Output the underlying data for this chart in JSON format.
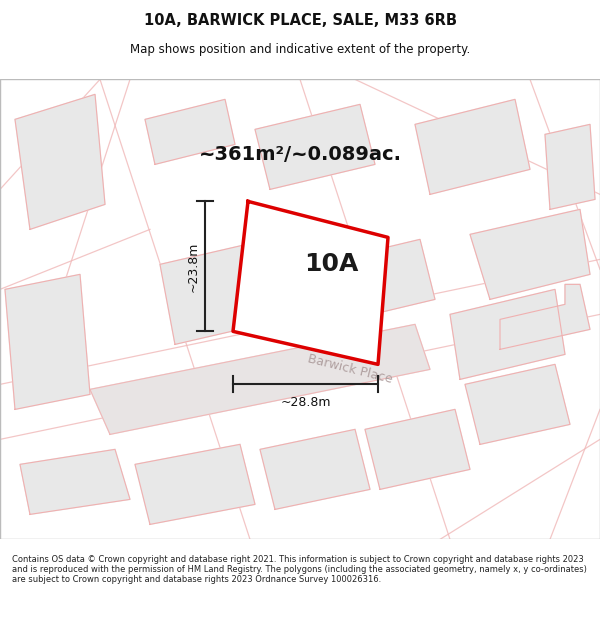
{
  "title": "10A, BARWICK PLACE, SALE, M33 6RB",
  "subtitle": "Map shows position and indicative extent of the property.",
  "area_text": "~361m²/~0.089ac.",
  "label": "10A",
  "dim_width": "~28.8m",
  "dim_height": "~23.8m",
  "road_label": "Barwick Place",
  "footer": "Contains OS data © Crown copyright and database right 2021. This information is subject to Crown copyright and database rights 2023 and is reproduced with the permission of HM Land Registry. The polygons (including the associated geometry, namely x, y co-ordinates) are subject to Crown copyright and database rights 2023 Ordnance Survey 100026316.",
  "page_bg": "#ffffff",
  "map_bg": "#ffffff",
  "building_fill": "#e8e8e8",
  "building_edge": "#f0b0b0",
  "road_fill": "#e0dede",
  "road_edge": "#f0b0b0",
  "highlight_fill": "#ffffff",
  "highlight_edge": "#dd0000",
  "title_color": "#111111",
  "footer_color": "#222222",
  "area_text_color": "#111111",
  "dim_color": "#111111",
  "road_label_color": "#b0a0a0",
  "barwick_road_fill": "#e8e4e4"
}
